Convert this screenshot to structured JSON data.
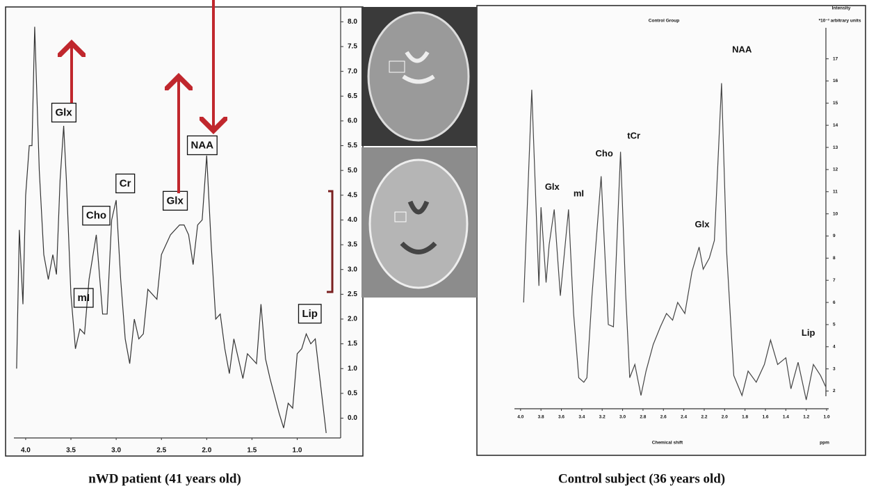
{
  "chart_data": [
    {
      "type": "line",
      "color": "#333333",
      "annotation_box": true,
      "xlim": [
        4.13,
        0.52
      ],
      "ylim": [
        -0.4,
        8.3
      ],
      "xticks": [
        {
          "value": 4,
          "label": "4.0"
        },
        {
          "value": 3.5,
          "label": "3.5"
        },
        {
          "value": 3,
          "label": "3.0"
        },
        {
          "value": 2.5,
          "label": "2.5"
        },
        {
          "value": 2,
          "label": "2.0"
        },
        {
          "value": 1.5,
          "label": "1.5"
        },
        {
          "value": 1,
          "label": "1.0"
        }
      ],
      "yticks": [
        {
          "value": 0,
          "label": "0.0"
        },
        {
          "value": 0.5,
          "label": "0.5"
        },
        {
          "value": 1,
          "label": "1.0"
        },
        {
          "value": 1.5,
          "label": "1.5"
        },
        {
          "value": 2,
          "label": "2.0"
        },
        {
          "value": 2.5,
          "label": "2.5"
        },
        {
          "value": 3,
          "label": "3.0"
        },
        {
          "value": 3.5,
          "label": "3.5"
        },
        {
          "value": 4,
          "label": "4.0"
        },
        {
          "value": 4.5,
          "label": "4.5"
        },
        {
          "value": 5,
          "label": "5.0"
        },
        {
          "value": 5.5,
          "label": "5.5"
        },
        {
          "value": 6,
          "label": "6.0"
        },
        {
          "value": 6.5,
          "label": "6.5"
        },
        {
          "value": 7,
          "label": "7.0"
        },
        {
          "value": 7.5,
          "label": "7.5"
        },
        {
          "value": 8,
          "label": "8.0"
        }
      ],
      "x": [
        4.1,
        4.07,
        4.03,
        4.0,
        3.96,
        3.93,
        3.9,
        3.85,
        3.8,
        3.75,
        3.7,
        3.66,
        3.62,
        3.58,
        3.55,
        3.5,
        3.45,
        3.4,
        3.35,
        3.3,
        3.22,
        3.15,
        3.1,
        3.05,
        3.0,
        2.95,
        2.9,
        2.85,
        2.8,
        2.75,
        2.7,
        2.65,
        2.55,
        2.5,
        2.4,
        2.3,
        2.25,
        2.2,
        2.15,
        2.1,
        2.05,
        2.0,
        1.95,
        1.9,
        1.85,
        1.8,
        1.75,
        1.7,
        1.6,
        1.55,
        1.45,
        1.4,
        1.35,
        1.3,
        1.2,
        1.15,
        1.1,
        1.05,
        1.0,
        0.95,
        0.9,
        0.85,
        0.8,
        0.75,
        0.68
      ],
      "values": [
        1.0,
        3.8,
        2.3,
        4.5,
        5.5,
        5.5,
        7.9,
        5.0,
        3.3,
        2.8,
        3.3,
        2.9,
        4.8,
        5.9,
        4.8,
        2.5,
        1.4,
        1.8,
        1.7,
        2.8,
        3.7,
        2.1,
        2.1,
        4.0,
        4.4,
        2.8,
        1.6,
        1.1,
        2.0,
        1.6,
        1.7,
        2.6,
        2.4,
        3.3,
        3.7,
        3.9,
        3.9,
        3.7,
        3.1,
        3.9,
        4.0,
        5.3,
        3.5,
        2.0,
        2.1,
        1.4,
        0.9,
        1.6,
        0.8,
        1.3,
        1.1,
        2.3,
        1.2,
        0.8,
        0.1,
        -0.2,
        0.3,
        0.2,
        1.3,
        1.4,
        1.7,
        1.5,
        1.6,
        0.8,
        -0.3
      ],
      "annotations": [
        {
          "text": "Glx",
          "x": 3.58,
          "y": 6.16
        },
        {
          "text": "Cr",
          "x": 2.9,
          "y": 4.73
        },
        {
          "text": "Cho",
          "x": 3.22,
          "y": 4.08
        },
        {
          "text": "mI",
          "x": 3.36,
          "y": 2.42
        },
        {
          "text": "NAA",
          "x": 2.05,
          "y": 5.5
        },
        {
          "text": "Glx",
          "x": 2.35,
          "y": 4.38
        },
        {
          "text": "Lip",
          "x": 0.86,
          "y": 2.1
        }
      ]
    },
    {
      "type": "line",
      "color": "#444444",
      "annotation_box": false,
      "title": "Control Group",
      "ylabel": "Intensity",
      "yunit": "*10⁻³ arbitrary units",
      "xlabel": "Chemical shift",
      "xunit": "ppm",
      "xlim": [
        4.06,
        0.98
      ],
      "ylim": [
        1.2,
        18.4
      ],
      "xticks": [
        {
          "value": 4,
          "label": "4.0"
        },
        {
          "value": 3.8,
          "label": "3.8"
        },
        {
          "value": 3.6,
          "label": "3.6"
        },
        {
          "value": 3.4,
          "label": "3.4"
        },
        {
          "value": 3.2,
          "label": "3.2"
        },
        {
          "value": 3,
          "label": "3.0"
        },
        {
          "value": 2.8,
          "label": "2.8"
        },
        {
          "value": 2.6,
          "label": "2.6"
        },
        {
          "value": 2.4,
          "label": "2.4"
        },
        {
          "value": 2.2,
          "label": "2.2"
        },
        {
          "value": 2,
          "label": "2.0"
        },
        {
          "value": 1.8,
          "label": "1.8"
        },
        {
          "value": 1.6,
          "label": "1.6"
        },
        {
          "value": 1.4,
          "label": "1.4"
        },
        {
          "value": 1.2,
          "label": "1.2"
        },
        {
          "value": 1,
          "label": "1.0"
        }
      ],
      "yticks": [
        2,
        3,
        4,
        5,
        6,
        7,
        8,
        9,
        10,
        11,
        12,
        13,
        14,
        15,
        16,
        17
      ],
      "x": [
        3.97,
        3.89,
        3.82,
        3.8,
        3.75,
        3.72,
        3.67,
        3.61,
        3.53,
        3.48,
        3.43,
        3.38,
        3.35,
        3.3,
        3.21,
        3.14,
        3.09,
        3.02,
        2.97,
        2.93,
        2.88,
        2.82,
        2.77,
        2.7,
        2.63,
        2.57,
        2.51,
        2.46,
        2.39,
        2.32,
        2.25,
        2.21,
        2.15,
        2.1,
        2.03,
        1.98,
        1.91,
        1.83,
        1.77,
        1.69,
        1.61,
        1.55,
        1.48,
        1.4,
        1.35,
        1.28,
        1.2,
        1.13,
        1.06,
        1.01
      ],
      "values": [
        6.0,
        15.6,
        6.75,
        10.3,
        6.9,
        8.6,
        10.2,
        6.3,
        10.2,
        5.5,
        2.6,
        2.4,
        2.6,
        6.3,
        11.7,
        5.0,
        4.9,
        12.8,
        6.4,
        2.6,
        3.2,
        1.8,
        2.9,
        4.1,
        4.9,
        5.5,
        5.2,
        6.0,
        5.5,
        7.4,
        8.5,
        7.5,
        8.0,
        8.8,
        15.9,
        8.3,
        2.7,
        1.8,
        2.9,
        2.4,
        3.2,
        4.3,
        3.2,
        3.5,
        2.1,
        3.3,
        1.6,
        3.2,
        2.7,
        2.2
      ],
      "annotations": [
        {
          "text": "Glx",
          "x": 3.69,
          "y": 11.2
        },
        {
          "text": "mI",
          "x": 3.43,
          "y": 10.9
        },
        {
          "text": "Cho",
          "x": 3.18,
          "y": 12.7
        },
        {
          "text": "tCr",
          "x": 2.89,
          "y": 13.5
        },
        {
          "text": "NAA",
          "x": 1.83,
          "y": 17.4
        },
        {
          "text": "Glx",
          "x": 2.22,
          "y": 9.5
        },
        {
          "text": "Lip",
          "x": 1.18,
          "y": 4.6
        }
      ]
    }
  ],
  "captions": [
    "nWD patient (41 years old)",
    "Control  subject (36 years old)"
  ]
}
